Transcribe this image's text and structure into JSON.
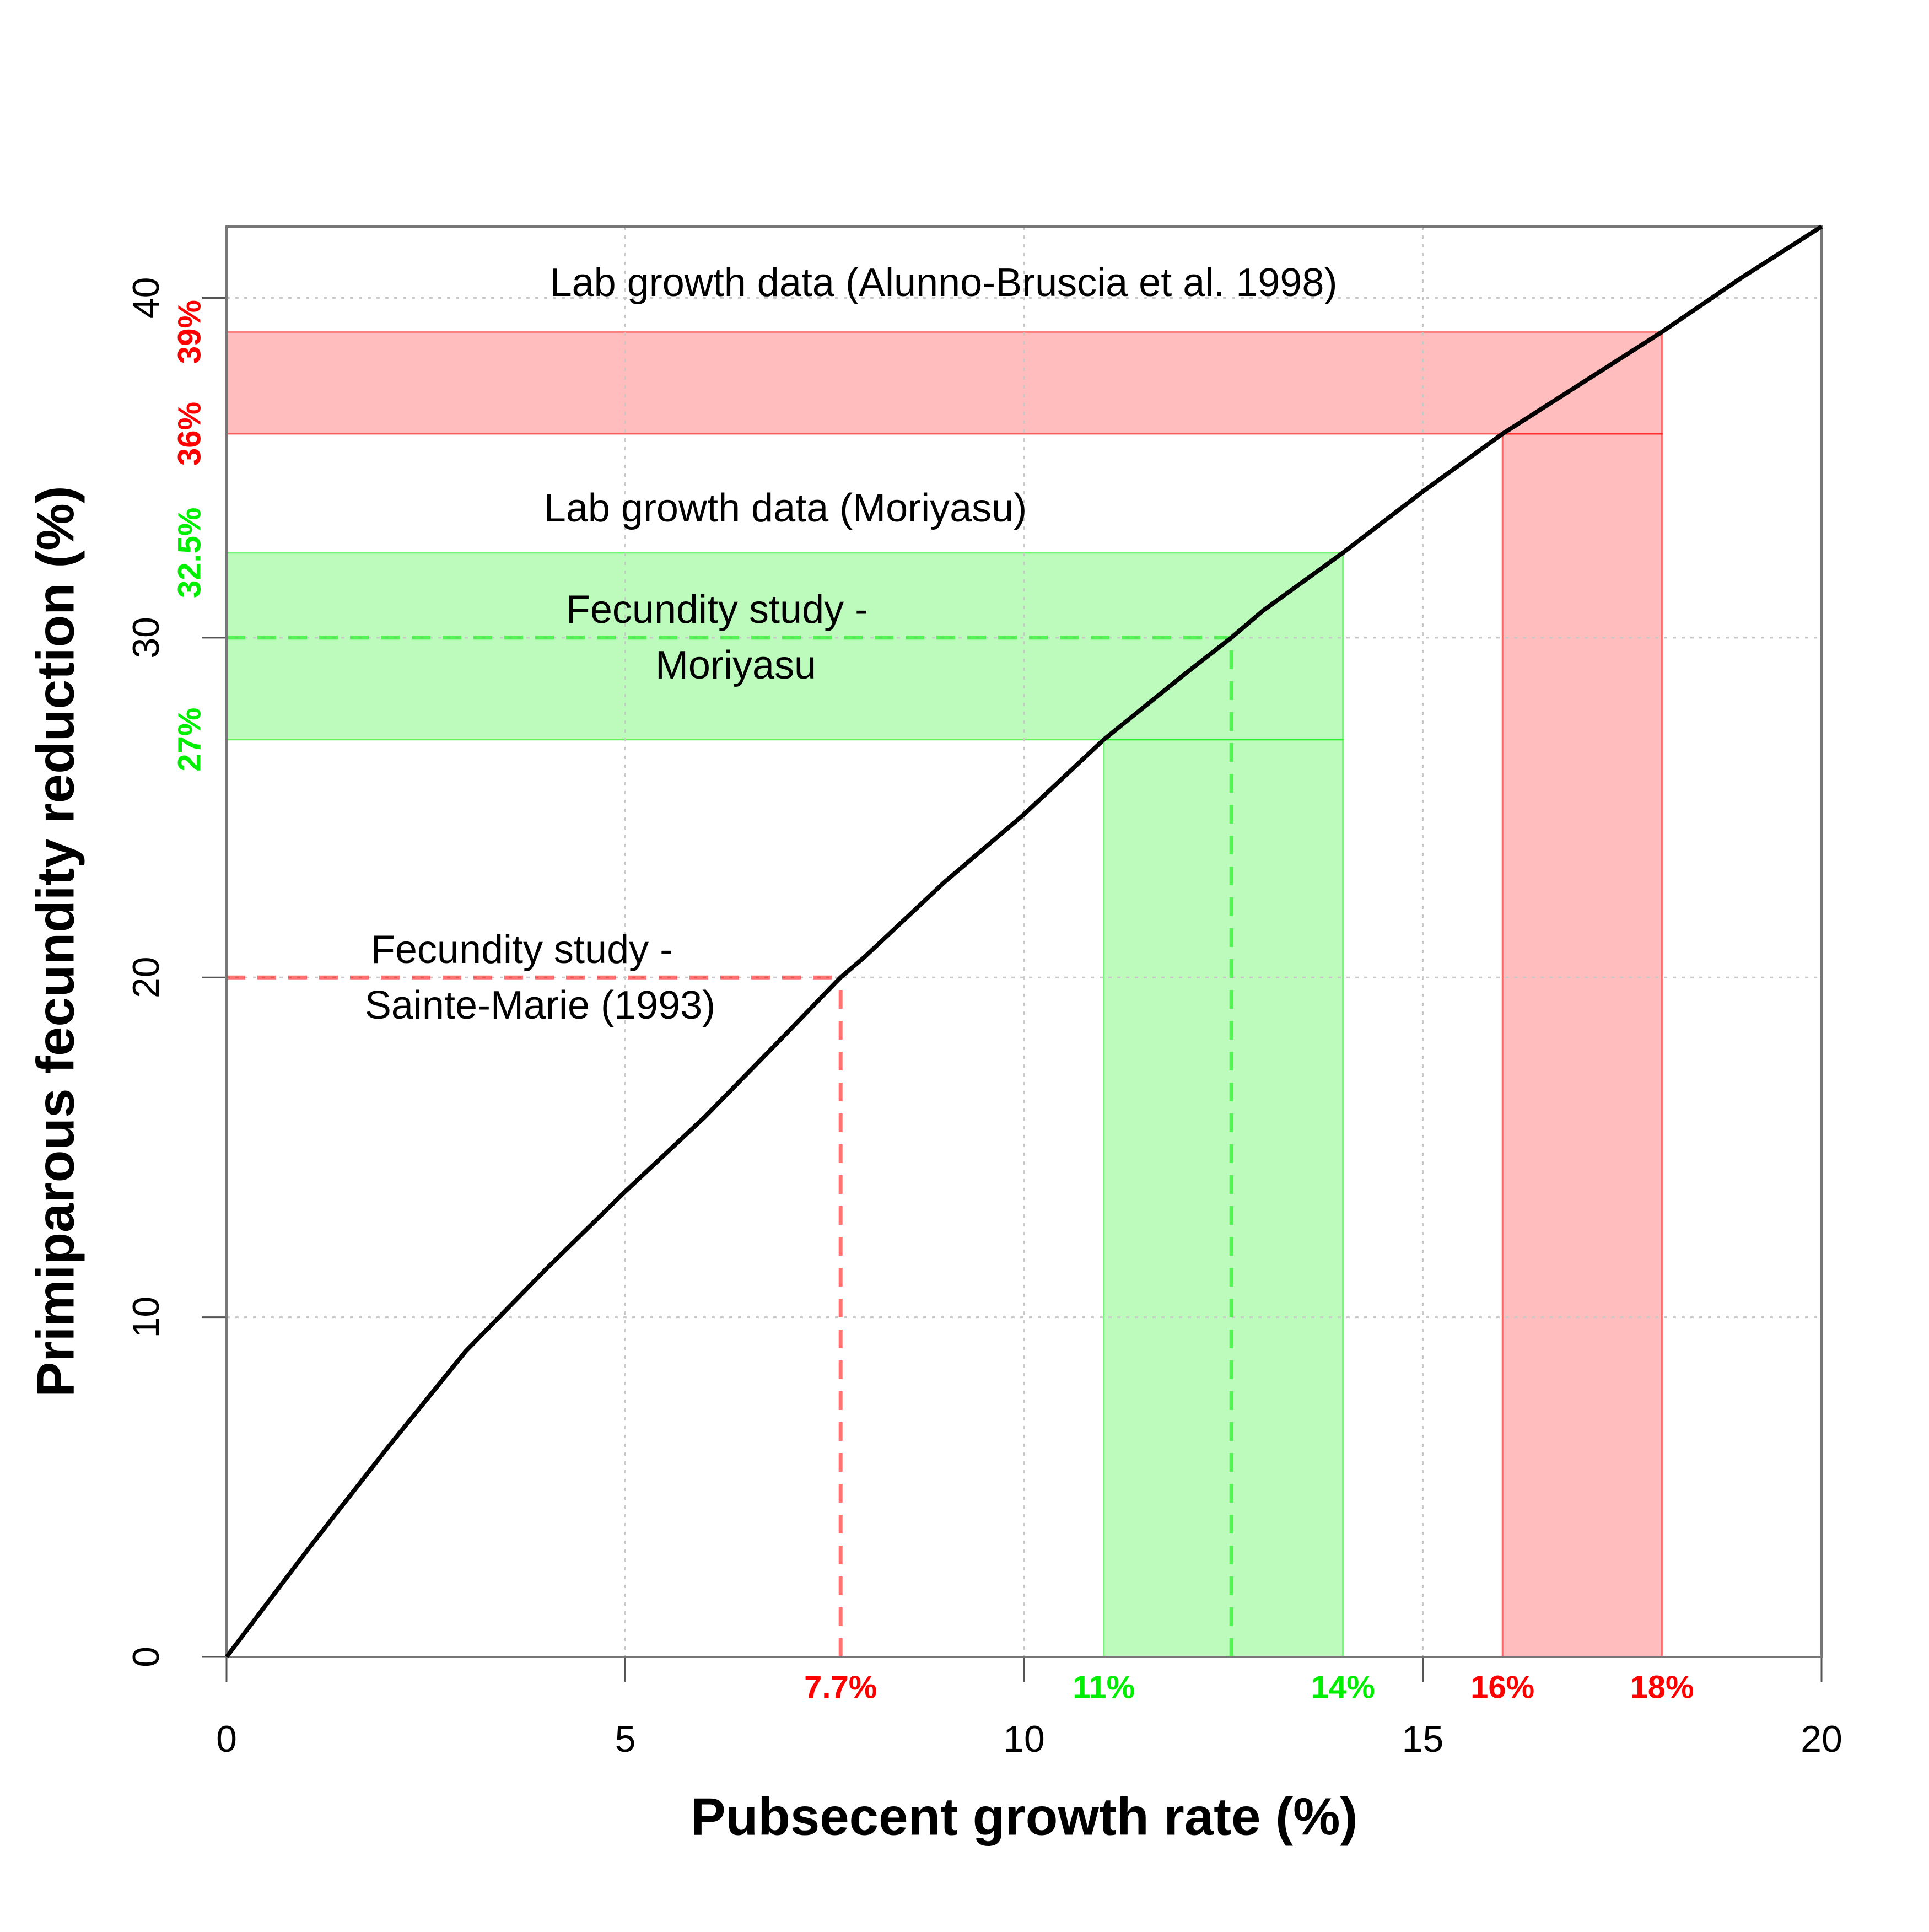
{
  "chart_data": {
    "type": "line",
    "xlabel": "Pubsecent growth rate (%)",
    "ylabel": "Primiparous fecundity reduction (%)",
    "x": [
      0,
      1,
      2,
      3,
      4,
      5,
      6,
      7,
      7.7,
      8,
      9,
      10,
      11,
      12,
      12.6,
      13,
      14,
      15,
      16,
      17,
      18,
      19,
      20
    ],
    "values": [
      0,
      3.1,
      6.1,
      9,
      11.4,
      13.7,
      15.9,
      18.3,
      20,
      20.6,
      22.8,
      24.8,
      27,
      28.9,
      30,
      30.8,
      32.5,
      34.3,
      36,
      37.5,
      39,
      40.6,
      42.1
    ],
    "color": "#000000",
    "xlim": [
      0,
      20
    ],
    "ylim": [
      0,
      42.1
    ],
    "xticks": [
      0,
      5,
      10,
      15,
      20
    ],
    "yticks": [
      0,
      10,
      20,
      30,
      40
    ],
    "grid": true,
    "highlights": [
      {
        "color": "#ff0000",
        "x_range": [
          {
            "value": 16,
            "label": "16%"
          },
          {
            "value": 18,
            "label": "18%"
          }
        ],
        "y_range": [
          {
            "value": 36,
            "label": "36%"
          },
          {
            "value": 39,
            "label": "39%"
          }
        ],
        "annotation": "Lab growth data (Alunno-Bruscia et al. 1998)"
      },
      {
        "color": "#00ee00",
        "x_range": [
          {
            "value": 11,
            "label": "11%"
          },
          {
            "value": 14,
            "label": "14%"
          }
        ],
        "y_range": [
          {
            "value": 27,
            "label": "27%"
          },
          {
            "value": 32.5,
            "label": "32.5%"
          }
        ],
        "annotation": "Lab growth data (Moriyasu)"
      }
    ],
    "reference_lines": [
      {
        "color": "#ff0000",
        "x": {
          "value": 7.7,
          "label": "7.7%"
        },
        "y": 20,
        "annotation": [
          "Fecundity study -",
          "Sainte-Marie (1993)"
        ]
      },
      {
        "color": "#00ee00",
        "x": 12.6,
        "y": 30,
        "annotation": [
          "Fecundity study -",
          "Moriyasu"
        ]
      }
    ]
  }
}
